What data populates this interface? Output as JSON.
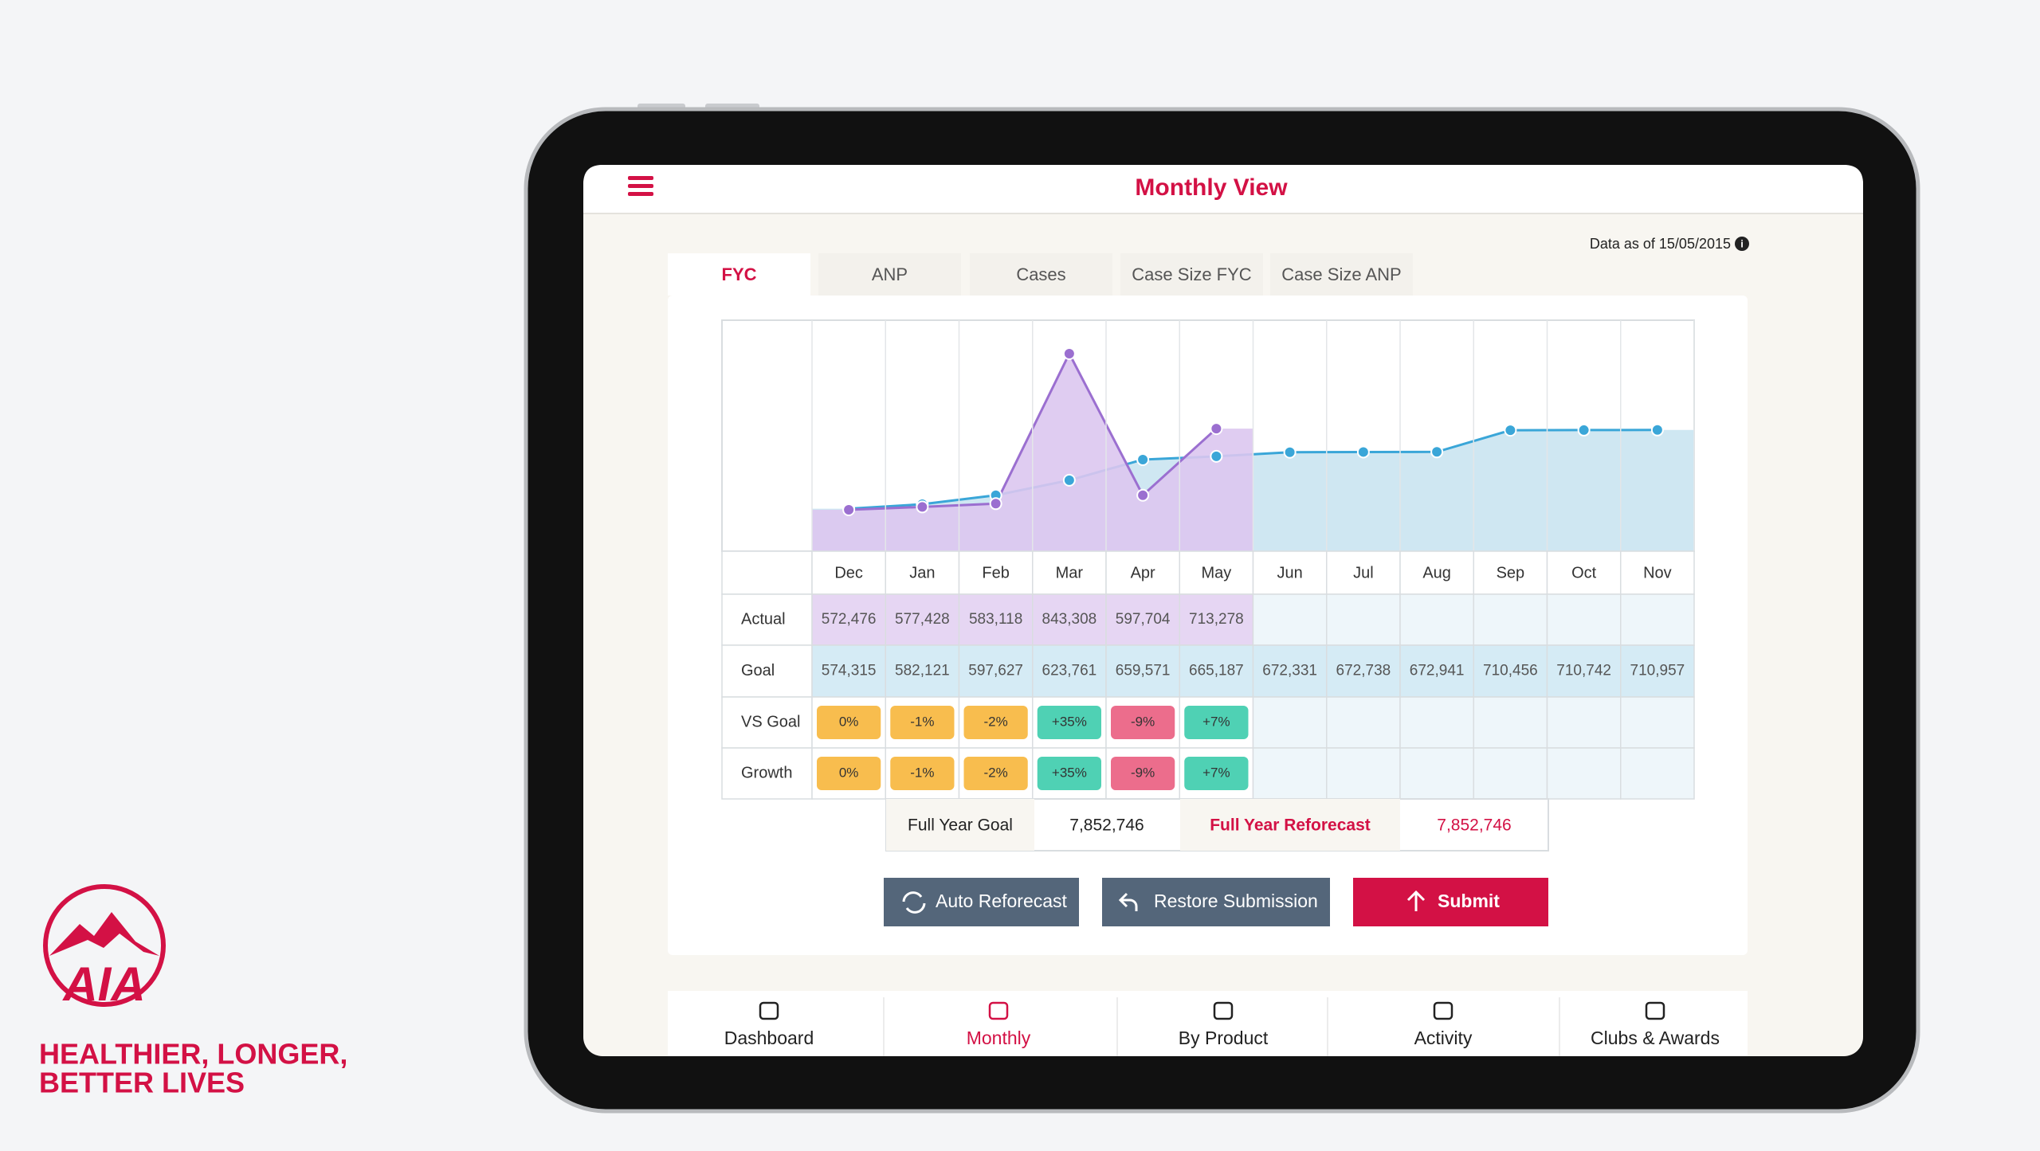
{
  "brand": {
    "logo": "AIA",
    "tagline": [
      "HEALTHIER, LONGER,",
      "BETTER LIVES"
    ]
  },
  "header": {
    "title": "Monthly View",
    "data_as_of": "Data as of 15/05/2015"
  },
  "tabs": {
    "items": [
      "FYC",
      "ANP",
      "Cases",
      "Case Size FYC",
      "Case Size ANP"
    ],
    "active": 0
  },
  "chart_data": {
    "type": "line",
    "categories": [
      "Dec",
      "Jan",
      "Feb",
      "Mar",
      "Apr",
      "May",
      "Jun",
      "Jul",
      "Aug",
      "Sep",
      "Oct",
      "Nov"
    ],
    "series": [
      {
        "name": "Actual",
        "color": "#9b6fd0",
        "fill": "#dcc6f0",
        "values": [
          572476,
          577428,
          583118,
          843308,
          597704,
          713278,
          null,
          null,
          null,
          null,
          null,
          null
        ],
        "value_labels": [
          "572,476",
          "577,428",
          "583,118",
          "843,308",
          "597,704",
          "713,278",
          null,
          null,
          null,
          null,
          null,
          null
        ]
      },
      {
        "name": "Goal",
        "color": "#3aa6d8",
        "fill": "#cfe7f2",
        "values": [
          574315,
          582121,
          597627,
          623761,
          659571,
          665187,
          672331,
          672738,
          672941,
          710456,
          710742,
          710957
        ],
        "value_labels": [
          "574,315",
          "582,121",
          "597,627",
          "623,761",
          "659,571",
          "665,187",
          "672,331",
          "672,738",
          "672,941",
          "710,456",
          "710,742",
          "710,957"
        ]
      }
    ],
    "grid": true
  },
  "table": {
    "rows": [
      {
        "label": "VS Goal",
        "cells": [
          {
            "text": "0%",
            "color": "#f8bd4e"
          },
          {
            "text": "-1%",
            "color": "#f8bd4e"
          },
          {
            "text": "-2%",
            "color": "#f8bd4e"
          },
          {
            "text": "+35%",
            "color": "#4fd1b4"
          },
          {
            "text": "-9%",
            "color": "#ec6d8c"
          },
          {
            "text": "+7%",
            "color": "#4fd1b4"
          }
        ]
      },
      {
        "label": "Growth",
        "cells": [
          {
            "text": "0%",
            "color": "#f8bd4e"
          },
          {
            "text": "-1%",
            "color": "#f8bd4e"
          },
          {
            "text": "-2%",
            "color": "#f8bd4e"
          },
          {
            "text": "+35%",
            "color": "#4fd1b4"
          },
          {
            "text": "-9%",
            "color": "#ec6d8c"
          },
          {
            "text": "+7%",
            "color": "#4fd1b4"
          }
        ]
      }
    ]
  },
  "full_year": {
    "goal_label": "Full Year Goal",
    "goal_value": "7,852,746",
    "reforecast_label": "Full Year Reforecast",
    "reforecast_value": "7,852,746"
  },
  "buttons": [
    "Auto Reforecast",
    "Restore Submission",
    "Submit"
  ],
  "nav": {
    "items": [
      "Dashboard",
      "Monthly",
      "By Product",
      "Activity",
      "Clubs & Awards"
    ],
    "active": 1
  }
}
